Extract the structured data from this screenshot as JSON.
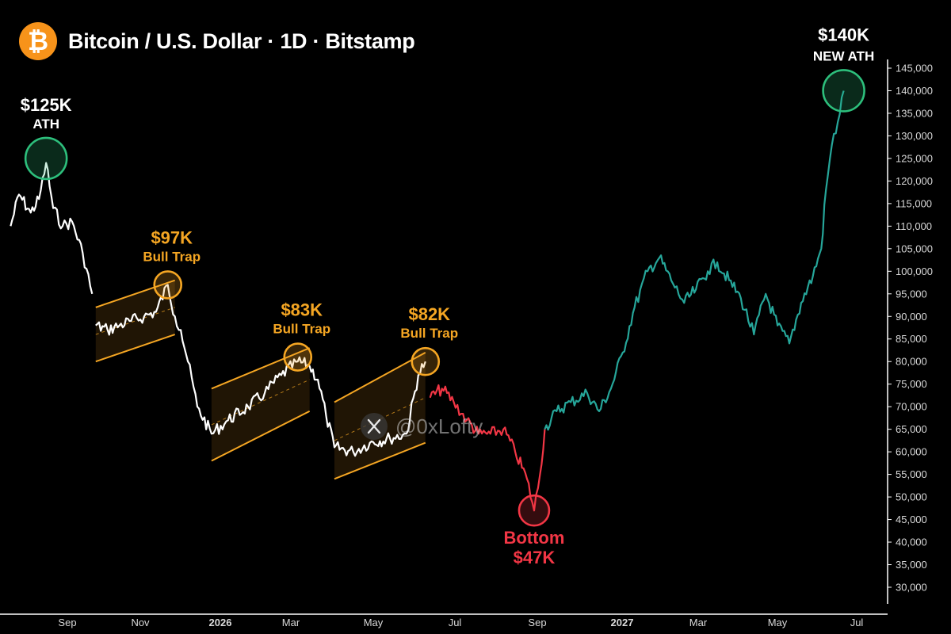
{
  "header": {
    "title": "Bitcoin / U.S. Dollar · 1D · Bitstamp",
    "logo_glyph": "₿",
    "logo_icon": "bitcoin-icon"
  },
  "watermark": {
    "handle": "@0xLofty",
    "icon": "x-logo-icon"
  },
  "colors": {
    "bull": "#26a69a",
    "bear": "#f23645",
    "channel": "#f5a623",
    "ath": "#2dbf7c",
    "bottom": "#f23645",
    "brand": "#f7931a",
    "axis": "#ffffff",
    "text": "#d9d9d9"
  },
  "chart_data": {
    "type": "line",
    "title": "Bitcoin / U.S. Dollar · 1D · Bitstamp",
    "xlabel": "",
    "ylabel": "",
    "ylim": [
      25000,
      148000
    ],
    "x_tick_labels": [
      "Sep",
      "Nov",
      "2026",
      "Mar",
      "May",
      "Jul",
      "Sep",
      "2027",
      "Mar",
      "May",
      "Jul"
    ],
    "y_tick_labels": [
      "145,000",
      "140,000",
      "135,000",
      "130,000",
      "125,000",
      "120,000",
      "115,000",
      "110,000",
      "105,000",
      "100,000",
      "95,000",
      "90,000",
      "85,000",
      "80,000",
      "75,000",
      "70,000",
      "65,000",
      "60,000",
      "55,000",
      "50,000",
      "45,000",
      "40,000",
      "35,000",
      "30,000"
    ],
    "y_tick_values": [
      145000,
      140000,
      135000,
      130000,
      125000,
      120000,
      115000,
      110000,
      105000,
      100000,
      95000,
      90000,
      85000,
      80000,
      75000,
      70000,
      65000,
      60000,
      55000,
      50000,
      45000,
      40000,
      35000,
      30000
    ],
    "grid": false,
    "series": [
      {
        "color": "#ffffff",
        "values": [
          {
            "x": "2025-07-15",
            "y": 110000
          },
          {
            "x": "2025-07-22",
            "y": 117000
          },
          {
            "x": "2025-08-01",
            "y": 113000
          },
          {
            "x": "2025-08-08",
            "y": 116000
          },
          {
            "x": "2025-08-14",
            "y": 124000
          },
          {
            "x": "2025-08-20",
            "y": 114000
          },
          {
            "x": "2025-08-28",
            "y": 110000
          },
          {
            "x": "2025-09-05",
            "y": 111000
          },
          {
            "x": "2025-09-14",
            "y": 104000
          },
          {
            "x": "2025-09-22",
            "y": 95000
          }
        ]
      },
      {
        "color": "#ffffff",
        "values": [
          {
            "x": "2025-09-25",
            "y": 88000
          },
          {
            "x": "2025-10-05",
            "y": 87000
          },
          {
            "x": "2025-10-15",
            "y": 88000
          },
          {
            "x": "2025-10-25",
            "y": 89000
          },
          {
            "x": "2025-11-05",
            "y": 90000
          },
          {
            "x": "2025-11-15",
            "y": 91000
          },
          {
            "x": "2025-11-25",
            "y": 97000
          },
          {
            "x": "2025-12-01",
            "y": 90000
          },
          {
            "x": "2025-12-06",
            "y": 87000
          },
          {
            "x": "2025-12-12",
            "y": 80000
          },
          {
            "x": "2025-12-20",
            "y": 70000
          },
          {
            "x": "2026-01-01",
            "y": 64000
          },
          {
            "x": "2026-01-15",
            "y": 67000
          },
          {
            "x": "2026-02-01",
            "y": 70000
          },
          {
            "x": "2026-02-15",
            "y": 73000
          },
          {
            "x": "2026-03-01",
            "y": 77000
          },
          {
            "x": "2026-03-15",
            "y": 80000
          },
          {
            "x": "2026-03-25",
            "y": 79000
          },
          {
            "x": "2026-04-01",
            "y": 76000
          },
          {
            "x": "2026-04-08",
            "y": 68000
          },
          {
            "x": "2026-04-15",
            "y": 61000
          },
          {
            "x": "2026-05-01",
            "y": 60000
          },
          {
            "x": "2026-05-15",
            "y": 62000
          },
          {
            "x": "2026-06-01",
            "y": 63000
          },
          {
            "x": "2026-06-15",
            "y": 64000
          },
          {
            "x": "2026-06-25",
            "y": 77000
          },
          {
            "x": "2026-07-01",
            "y": 80000
          }
        ]
      },
      {
        "color": "#f23645",
        "values": [
          {
            "x": "2026-07-05",
            "y": 72000
          },
          {
            "x": "2026-07-15",
            "y": 74000
          },
          {
            "x": "2026-07-25",
            "y": 71000
          },
          {
            "x": "2026-08-05",
            "y": 67000
          },
          {
            "x": "2026-08-15",
            "y": 64000
          },
          {
            "x": "2026-08-25",
            "y": 64000
          },
          {
            "x": "2026-09-05",
            "y": 65000
          },
          {
            "x": "2026-09-15",
            "y": 60000
          },
          {
            "x": "2026-09-25",
            "y": 54000
          },
          {
            "x": "2026-10-01",
            "y": 47000
          },
          {
            "x": "2026-10-06",
            "y": 55000
          },
          {
            "x": "2026-10-10",
            "y": 65000
          }
        ]
      },
      {
        "color": "#26a69a",
        "values": [
          {
            "x": "2026-10-10",
            "y": 65000
          },
          {
            "x": "2026-10-20",
            "y": 69000
          },
          {
            "x": "2026-11-01",
            "y": 71000
          },
          {
            "x": "2026-11-15",
            "y": 73000
          },
          {
            "x": "2026-11-25",
            "y": 69000
          },
          {
            "x": "2026-12-05",
            "y": 74000
          },
          {
            "x": "2026-12-15",
            "y": 82000
          },
          {
            "x": "2026-12-25",
            "y": 92000
          },
          {
            "x": "2027-01-05",
            "y": 100000
          },
          {
            "x": "2027-01-15",
            "y": 103000
          },
          {
            "x": "2027-01-25",
            "y": 98000
          },
          {
            "x": "2027-02-05",
            "y": 93000
          },
          {
            "x": "2027-02-15",
            "y": 96000
          },
          {
            "x": "2027-02-25",
            "y": 100000
          },
          {
            "x": "2027-03-05",
            "y": 102000
          },
          {
            "x": "2027-03-15",
            "y": 98000
          },
          {
            "x": "2027-03-25",
            "y": 94000
          },
          {
            "x": "2027-04-05",
            "y": 86000
          },
          {
            "x": "2027-04-15",
            "y": 95000
          },
          {
            "x": "2027-04-25",
            "y": 88000
          },
          {
            "x": "2027-05-05",
            "y": 84000
          },
          {
            "x": "2027-05-15",
            "y": 93000
          },
          {
            "x": "2027-05-25",
            "y": 99000
          },
          {
            "x": "2027-06-01",
            "y": 105000
          },
          {
            "x": "2027-06-05",
            "y": 118000
          },
          {
            "x": "2027-06-10",
            "y": 128000
          },
          {
            "x": "2027-06-15",
            "y": 133000
          },
          {
            "x": "2027-06-20",
            "y": 140000
          }
        ]
      }
    ],
    "channels": [
      {
        "upper": [
          {
            "x": "2025-09-25",
            "y": 92000
          },
          {
            "x": "2025-12-01",
            "y": 98000
          }
        ],
        "lower": [
          {
            "x": "2025-09-25",
            "y": 80000
          },
          {
            "x": "2025-12-01",
            "y": 86000
          }
        ]
      },
      {
        "upper": [
          {
            "x": "2026-01-01",
            "y": 74000
          },
          {
            "x": "2026-03-25",
            "y": 83000
          }
        ],
        "lower": [
          {
            "x": "2026-01-01",
            "y": 58000
          },
          {
            "x": "2026-03-25",
            "y": 69000
          }
        ]
      },
      {
        "upper": [
          {
            "x": "2026-04-15",
            "y": 71000
          },
          {
            "x": "2026-07-01",
            "y": 82000
          }
        ],
        "lower": [
          {
            "x": "2026-04-15",
            "y": 54000
          },
          {
            "x": "2026-07-01",
            "y": 62000
          }
        ]
      }
    ],
    "annotations": [
      {
        "price": "$125K",
        "label": "ATH",
        "x": "2025-08-14",
        "y": 125000,
        "color": "#2dbf7c"
      },
      {
        "price": "$97K",
        "label": "Bull Trap",
        "x": "2025-11-25",
        "y": 97000,
        "color": "#f5a623"
      },
      {
        "price": "$83K",
        "label": "Bull Trap",
        "x": "2026-03-15",
        "y": 81000,
        "color": "#f5a623"
      },
      {
        "price": "$82K",
        "label": "Bull Trap",
        "x": "2026-07-01",
        "y": 80000,
        "color": "#f5a623"
      },
      {
        "price": "$47K",
        "label": "Bottom",
        "x": "2026-10-01",
        "y": 47000,
        "color": "#f23645"
      },
      {
        "price": "$140K",
        "label": "NEW ATH",
        "x": "2027-06-20",
        "y": 140000,
        "color": "#2dbf7c"
      }
    ]
  }
}
